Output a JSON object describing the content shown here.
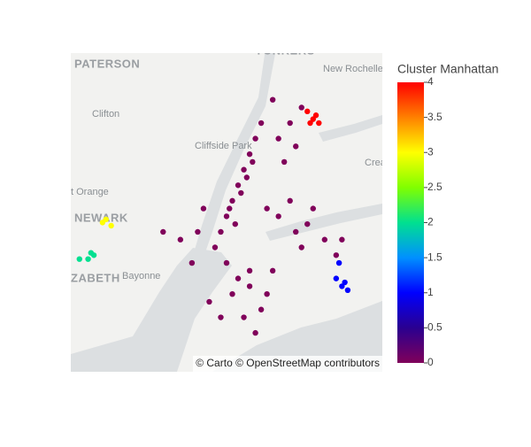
{
  "chart_data": {
    "type": "scatter_map",
    "lon": [
      -73.91,
      -73.93,
      -73.94,
      -73.95,
      -73.96,
      -73.97,
      -73.98,
      -73.99,
      -74.0,
      -74.01,
      -73.985,
      -73.955,
      -73.975,
      -73.965,
      -73.945,
      -73.88,
      -73.87,
      -73.9,
      -73.86,
      -73.89,
      -73.9,
      -73.85,
      -73.82,
      -73.88,
      -73.8,
      -73.87,
      -73.84,
      -73.79,
      -73.92,
      -73.86,
      -73.95,
      -73.98,
      -73.96,
      -74.0,
      -73.92,
      -73.94,
      -73.97,
      -73.93,
      -73.99,
      -73.95,
      -73.91,
      -74.02,
      -74.04,
      -74.07,
      -74.1,
      -74.03,
      -74.05,
      -73.85,
      -73.84,
      -73.83,
      -73.845,
      -73.835,
      -74.199,
      -74.19,
      -74.205,
      -74.22,
      -74.245,
      -74.23,
      -74.225,
      -73.8,
      -73.78,
      -73.795,
      -73.785,
      -73.79
    ],
    "lat": [
      40.9,
      40.87,
      40.85,
      40.83,
      40.81,
      40.79,
      40.77,
      40.75,
      40.73,
      40.71,
      40.76,
      40.8,
      40.74,
      40.78,
      40.82,
      40.87,
      40.84,
      40.85,
      40.89,
      40.82,
      40.75,
      40.74,
      40.72,
      40.77,
      40.7,
      40.73,
      40.76,
      40.72,
      40.76,
      40.71,
      40.68,
      40.65,
      40.62,
      40.62,
      40.65,
      40.6,
      40.67,
      40.63,
      40.69,
      40.66,
      40.68,
      40.64,
      40.73,
      40.72,
      40.73,
      40.76,
      40.69,
      40.885,
      40.875,
      40.87,
      40.87,
      40.88,
      40.746,
      40.738,
      40.742,
      40.7,
      40.695,
      40.695,
      40.703,
      40.67,
      40.655,
      40.69,
      40.665,
      40.66
    ],
    "values": [
      0,
      0,
      0,
      0,
      0,
      0,
      0,
      0,
      0,
      0,
      0,
      0,
      0,
      0,
      0,
      0,
      0,
      0,
      0,
      0,
      0,
      0,
      0,
      0,
      0,
      0,
      0,
      0,
      0,
      0,
      0,
      0,
      0,
      0,
      0,
      0,
      0,
      0,
      0,
      0,
      0,
      0,
      0,
      0,
      0,
      0,
      0,
      4,
      4,
      4,
      4,
      4,
      3,
      3,
      3,
      2,
      2,
      2,
      2,
      1,
      1,
      1,
      1,
      1
    ],
    "lonlim": [
      -74.26,
      -73.72
    ],
    "latlim": [
      40.55,
      40.96
    ],
    "colorbar": {
      "title": "Cluster Manhattan",
      "clim": [
        0,
        4
      ],
      "ticks": [
        0,
        0.5,
        1,
        1.5,
        2,
        2.5,
        3,
        3.5,
        4
      ],
      "colors": [
        "#80005a",
        "#2a0090",
        "#0000ff",
        "#0090ff",
        "#00e090",
        "#80ff00",
        "#ffff00",
        "#ff8000",
        "#ff0000"
      ]
    },
    "attribution": "© Carto © OpenStreetMap contributors",
    "map_labels": [
      "PATERSON",
      "Clifton",
      "Cliffside Park",
      "New Rochelle",
      "NEWARK",
      "t Orange",
      "Bayonne",
      "ZABETH",
      "YONKERS",
      "Crea"
    ]
  }
}
